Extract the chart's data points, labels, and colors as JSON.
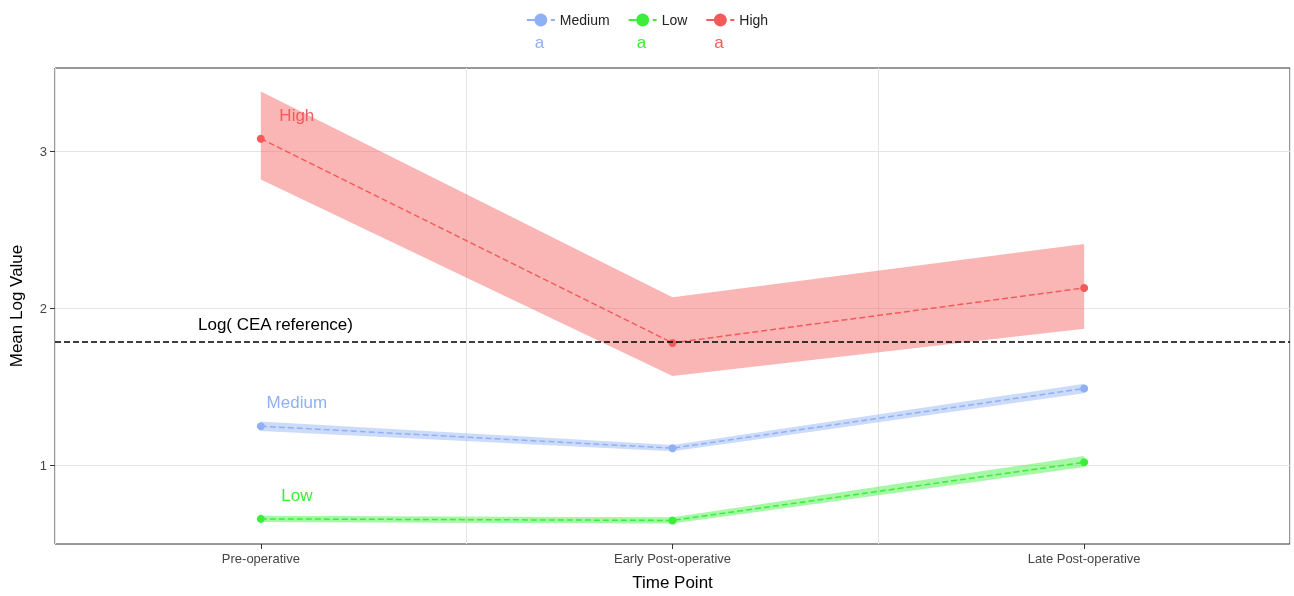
{
  "chart_data": {
    "type": "line",
    "xlabel": "Time Point",
    "ylabel": "Mean Log Value",
    "categories": [
      "Pre-operative",
      "Early Post-operative",
      "Late Post-operative"
    ],
    "series": [
      {
        "name": "Medium",
        "color": "#8fb0f5",
        "values": [
          1.25,
          1.11,
          1.49
        ],
        "lower": [
          1.22,
          1.09,
          1.46
        ],
        "upper": [
          1.28,
          1.13,
          1.52
        ]
      },
      {
        "name": "Low",
        "color": "#3aee3a",
        "values": [
          0.66,
          0.65,
          1.02
        ],
        "lower": [
          0.64,
          0.63,
          0.99
        ],
        "upper": [
          0.68,
          0.67,
          1.06
        ]
      },
      {
        "name": "High",
        "color": "#f55a5a",
        "values": [
          3.08,
          1.78,
          2.13
        ],
        "lower": [
          2.82,
          1.57,
          1.87
        ],
        "upper": [
          3.38,
          2.07,
          2.41
        ]
      }
    ],
    "ylim": [
      0.5,
      3.53
    ],
    "yticks": [
      1,
      2,
      3
    ],
    "ref_lines": [
      {
        "axis": "y",
        "value": 1.79,
        "label": "Log( CEA reference)",
        "color": "#000000",
        "line_style": "dashed"
      }
    ],
    "annotations": [
      "a",
      "a",
      "a"
    ],
    "grid": true,
    "legend": "top",
    "marker": "circle",
    "line_style": "dashed"
  }
}
